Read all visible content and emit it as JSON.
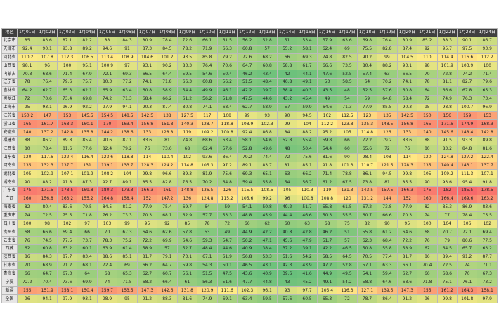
{
  "table": {
    "header": [
      "地区",
      "1月01日",
      "1月02日",
      "1月03日",
      "1月04日",
      "1月05日",
      "1月06日",
      "1月07日",
      "1月08日",
      "1月09日",
      "1月10日",
      "1月11日",
      "1月12日",
      "1月13日",
      "1月14日",
      "1月15日",
      "1月16日",
      "1月17日",
      "1月18日",
      "1月19日",
      "1月20日",
      "1月21日",
      "1月22日",
      "1月23日",
      "1月24日"
    ],
    "rows": [
      {
        "label": "北京市",
        "values": [
          85.0,
          83.6,
          87.1,
          82.2,
          88.0,
          84.3,
          80.9,
          78.4,
          72.6,
          66.1,
          61.5,
          56.2,
          52.8,
          51.0,
          53.4,
          57.9,
          63.6,
          69.8,
          76.4,
          80.9,
          85.2,
          88.3,
          90.1,
          86.7
        ]
      },
      {
        "label": "天津市",
        "values": [
          92.4,
          90.1,
          93.8,
          89.2,
          94.6,
          91.0,
          87.3,
          84.5,
          78.2,
          71.9,
          66.3,
          60.8,
          57.0,
          55.2,
          58.1,
          62.4,
          69.0,
          75.5,
          82.8,
          87.4,
          92.0,
          95.7,
          97.5,
          93.9
        ]
      },
      {
        "label": "河北省",
        "values": [
          110.2,
          107.8,
          112.3,
          106.5,
          113.4,
          108.9,
          104.6,
          101.2,
          93.5,
          85.8,
          79.2,
          72.6,
          68.2,
          66.0,
          69.3,
          74.8,
          82.5,
          90.2,
          99.0,
          104.5,
          110.0,
          114.4,
          116.6,
          112.2
        ]
      },
      {
        "label": "山西省",
        "values": [
          98.1,
          96.0,
          100.0,
          95.1,
          100.9,
          97.0,
          93.1,
          90.2,
          83.3,
          76.4,
          70.6,
          64.7,
          60.8,
          58.8,
          61.7,
          66.6,
          73.5,
          80.4,
          88.2,
          93.1,
          98.0,
          101.9,
          103.9,
          100.0
        ]
      },
      {
        "label": "内蒙古",
        "values": [
          70.3,
          68.6,
          71.4,
          67.9,
          72.1,
          69.3,
          66.5,
          64.4,
          59.5,
          54.6,
          50.4,
          46.2,
          43.4,
          42.0,
          44.1,
          47.6,
          52.5,
          57.4,
          63.0,
          66.5,
          70.0,
          72.8,
          74.2,
          71.4
        ]
      },
      {
        "label": "辽宁省",
        "values": [
          78.0,
          76.4,
          79.6,
          75.7,
          80.3,
          77.2,
          74.1,
          71.8,
          66.3,
          60.8,
          56.2,
          51.5,
          48.4,
          46.8,
          49.1,
          53.0,
          58.5,
          64.0,
          70.2,
          74.1,
          78.0,
          81.1,
          82.7,
          79.6
        ]
      },
      {
        "label": "吉林省",
        "values": [
          64.2,
          62.7,
          65.3,
          62.1,
          65.9,
          63.4,
          60.8,
          58.9,
          54.4,
          49.9,
          46.1,
          42.2,
          39.7,
          38.4,
          40.3,
          43.5,
          48.0,
          52.5,
          57.6,
          60.8,
          64.0,
          66.6,
          67.8,
          65.3
        ]
      },
      {
        "label": "黑龙江",
        "values": [
          72.0,
          70.6,
          73.4,
          69.8,
          74.2,
          71.3,
          68.4,
          66.2,
          61.2,
          56.2,
          51.8,
          47.5,
          44.6,
          43.2,
          45.4,
          49.0,
          54.0,
          59.0,
          64.8,
          68.4,
          72.0,
          74.9,
          76.3,
          73.4
        ]
      },
      {
        "label": "上海市",
        "values": [
          95.0,
          93.1,
          96.9,
          92.2,
          97.9,
          94.1,
          90.3,
          87.4,
          80.8,
          74.1,
          68.4,
          62.7,
          58.9,
          57.0,
          59.9,
          64.6,
          71.3,
          77.9,
          85.5,
          90.3,
          95.0,
          98.8,
          100.7,
          96.9
        ]
      },
      {
        "label": "江苏省",
        "values": [
          150.2,
          147.0,
          153.0,
          145.5,
          154.5,
          148.5,
          142.5,
          138.0,
          127.5,
          117.0,
          108.0,
          99.0,
          93.0,
          90.0,
          94.5,
          102.0,
          112.5,
          123.0,
          135.0,
          142.5,
          150.0,
          156.0,
          159.0,
          153.0
        ]
      },
      {
        "label": "浙江省",
        "values": [
          165.0,
          161.7,
          168.3,
          160.1,
          170.0,
          163.4,
          156.8,
          151.8,
          140.3,
          128.7,
          118.8,
          108.9,
          102.3,
          99.0,
          104.0,
          112.2,
          123.8,
          135.3,
          148.5,
          156.8,
          165.0,
          171.6,
          174.9,
          168.3
        ]
      },
      {
        "label": "安徽省",
        "values": [
          140.0,
          137.2,
          142.8,
          135.8,
          144.2,
          138.6,
          133.0,
          128.8,
          119.0,
          109.2,
          100.8,
          92.4,
          86.8,
          84.0,
          88.2,
          95.2,
          105.0,
          114.8,
          126.0,
          133.0,
          140.0,
          145.6,
          148.4,
          142.8
        ]
      },
      {
        "label": "福建省",
        "values": [
          88.0,
          86.2,
          89.8,
          85.4,
          90.6,
          87.1,
          83.6,
          81.0,
          74.8,
          68.6,
          63.4,
          58.1,
          54.6,
          52.8,
          55.4,
          59.8,
          66.0,
          72.2,
          79.2,
          83.6,
          88.0,
          91.5,
          93.3,
          89.8
        ]
      },
      {
        "label": "江西省",
        "values": [
          80.0,
          78.4,
          81.6,
          77.6,
          82.4,
          79.2,
          76.0,
          73.6,
          68.0,
          62.4,
          57.6,
          52.8,
          49.6,
          48.0,
          50.4,
          54.4,
          60.0,
          65.6,
          72.0,
          76.0,
          80.0,
          83.2,
          84.8,
          81.6
        ]
      },
      {
        "label": "山东省",
        "values": [
          120.0,
          117.6,
          122.4,
          116.4,
          123.6,
          118.8,
          114.0,
          110.4,
          102.0,
          93.6,
          86.4,
          79.2,
          74.4,
          72.0,
          75.6,
          81.6,
          90.0,
          98.4,
          108.0,
          114.0,
          120.0,
          124.8,
          127.2,
          122.4
        ]
      },
      {
        "label": "河南省",
        "values": [
          135.0,
          132.3,
          137.7,
          131.0,
          139.1,
          133.7,
          128.3,
          124.2,
          114.8,
          105.3,
          97.2,
          89.1,
          83.7,
          81.0,
          85.1,
          91.8,
          101.3,
          110.7,
          121.5,
          128.3,
          135.0,
          140.4,
          143.1,
          137.7
        ]
      },
      {
        "label": "湖北省",
        "values": [
          105.0,
          102.9,
          107.1,
          101.9,
          108.2,
          104.0,
          99.8,
          96.6,
          89.3,
          81.9,
          75.6,
          69.3,
          65.1,
          63.0,
          66.2,
          71.4,
          78.8,
          86.1,
          94.5,
          99.8,
          105.0,
          109.2,
          111.3,
          107.1
        ]
      },
      {
        "label": "湖南省",
        "values": [
          90.0,
          88.2,
          91.8,
          87.3,
          92.7,
          89.1,
          85.5,
          82.8,
          76.5,
          70.2,
          64.8,
          59.4,
          55.8,
          54.0,
          56.7,
          61.2,
          67.5,
          73.8,
          81.0,
          85.5,
          90.0,
          93.6,
          95.4,
          91.8
        ]
      },
      {
        "label": "广东省",
        "values": [
          175.0,
          171.5,
          178.5,
          169.8,
          180.3,
          173.3,
          166.3,
          161.0,
          148.8,
          136.5,
          126.0,
          115.5,
          108.5,
          105.0,
          110.3,
          119.0,
          131.3,
          143.5,
          157.5,
          166.3,
          175.0,
          182.0,
          185.5,
          178.5
        ]
      },
      {
        "label": "广西",
        "values": [
          160.0,
          156.8,
          163.2,
          155.2,
          164.8,
          158.4,
          152.0,
          147.2,
          136.0,
          124.8,
          115.2,
          105.6,
          99.2,
          96.0,
          100.8,
          108.8,
          120.0,
          131.2,
          144.0,
          152.0,
          160.0,
          166.4,
          169.6,
          163.2
        ]
      },
      {
        "label": "海南省",
        "values": [
          82.0,
          80.4,
          83.6,
          79.5,
          84.5,
          81.2,
          77.9,
          75.4,
          69.7,
          64.0,
          59.0,
          54.1,
          50.8,
          49.2,
          51.7,
          55.8,
          61.5,
          67.2,
          73.8,
          77.9,
          82.0,
          85.3,
          86.9,
          83.6
        ]
      },
      {
        "label": "重庆市",
        "values": [
          74.0,
          72.5,
          75.5,
          71.8,
          76.2,
          73.3,
          70.3,
          68.1,
          62.9,
          57.7,
          53.3,
          48.8,
          45.9,
          44.4,
          46.6,
          50.3,
          55.5,
          60.7,
          66.6,
          70.3,
          74.0,
          77.0,
          78.4,
          75.5
        ]
      },
      {
        "label": "四川省",
        "values": [
          100.0,
          98.0,
          102.0,
          97.0,
          103.0,
          99.0,
          95.0,
          92.0,
          85.0,
          78.0,
          72.0,
          66.0,
          62.0,
          60.0,
          63.0,
          68.0,
          75.0,
          82.0,
          90.0,
          95.0,
          100.0,
          104.0,
          106.0,
          102.0
        ]
      },
      {
        "label": "贵州省",
        "values": [
          68.0,
          66.6,
          69.4,
          66.0,
          70.0,
          67.3,
          64.6,
          62.6,
          57.8,
          53.0,
          49.0,
          44.9,
          42.2,
          40.8,
          42.8,
          46.2,
          51.0,
          55.8,
          61.2,
          64.6,
          68.0,
          70.7,
          72.1,
          69.4
        ]
      },
      {
        "label": "云南省",
        "values": [
          76.0,
          74.5,
          77.5,
          73.7,
          78.3,
          75.2,
          72.2,
          69.9,
          64.6,
          59.3,
          54.7,
          50.2,
          47.1,
          45.6,
          47.9,
          51.7,
          57.0,
          62.3,
          68.4,
          72.2,
          76.0,
          79.0,
          80.6,
          77.5
        ]
      },
      {
        "label": "西藏",
        "values": [
          62.0,
          60.8,
          63.2,
          60.1,
          63.9,
          61.4,
          58.9,
          57.0,
          52.7,
          48.4,
          44.6,
          40.9,
          38.4,
          37.2,
          39.1,
          42.2,
          46.5,
          50.8,
          55.8,
          58.9,
          62.0,
          64.5,
          65.7,
          63.2
        ]
      },
      {
        "label": "陕西省",
        "values": [
          86.0,
          84.3,
          87.7,
          83.4,
          88.6,
          85.1,
          81.7,
          79.1,
          73.1,
          67.1,
          61.9,
          56.8,
          53.3,
          51.6,
          54.2,
          58.5,
          64.5,
          70.5,
          77.4,
          81.7,
          86.0,
          89.4,
          91.2,
          87.7
        ]
      },
      {
        "label": "甘肃省",
        "values": [
          70.0,
          68.9,
          71.2,
          68.1,
          72.4,
          69.0,
          66.2,
          64.7,
          59.8,
          54.3,
          50.1,
          46.5,
          43.1,
          42.3,
          43.9,
          47.2,
          52.8,
          57.1,
          63.3,
          66.1,
          70.4,
          72.5,
          74.0,
          71.1
        ]
      },
      {
        "label": "青海省",
        "values": [
          66.0,
          64.7,
          67.3,
          64.0,
          68.0,
          65.3,
          62.7,
          60.7,
          56.1,
          51.5,
          47.5,
          43.6,
          40.9,
          39.6,
          41.6,
          44.9,
          49.5,
          54.1,
          59.4,
          62.7,
          66.0,
          68.6,
          70.0,
          67.3
        ]
      },
      {
        "label": "宁夏",
        "values": [
          72.2,
          70.4,
          73.6,
          69.9,
          74.0,
          71.5,
          68.2,
          66.4,
          61.0,
          56.3,
          51.6,
          47.7,
          44.8,
          43.0,
          45.2,
          49.1,
          54.2,
          58.8,
          64.6,
          68.6,
          71.8,
          75.1,
          76.1,
          73.2
        ]
      },
      {
        "label": "新疆",
        "values": [
          155.0,
          151.9,
          158.1,
          150.4,
          159.7,
          153.5,
          147.3,
          142.6,
          131.8,
          120.9,
          111.6,
          102.3,
          96.1,
          93.0,
          97.7,
          105.4,
          116.3,
          127.1,
          139.5,
          147.3,
          155.0,
          161.2,
          164.3,
          158.1
        ]
      },
      {
        "label": "全国",
        "values": [
          96.0,
          94.1,
          97.9,
          93.1,
          98.9,
          95.0,
          91.2,
          88.3,
          81.6,
          74.9,
          69.1,
          63.4,
          59.5,
          57.6,
          60.5,
          65.3,
          72.0,
          78.7,
          86.4,
          91.2,
          96.0,
          99.8,
          101.8,
          97.9
        ]
      }
    ]
  }
}
